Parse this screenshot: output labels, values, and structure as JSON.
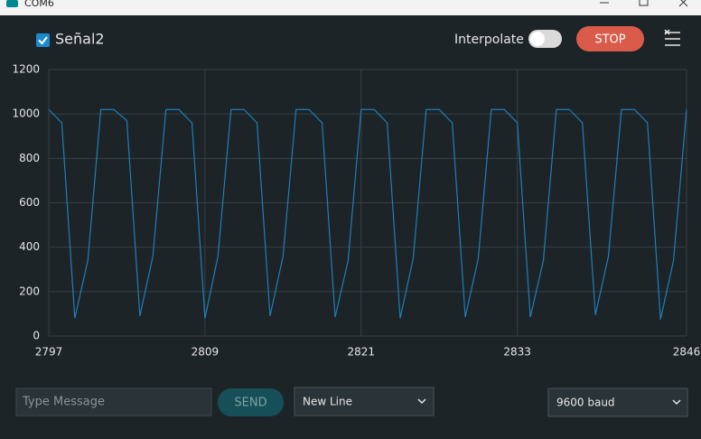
{
  "window": {
    "title": "COM6"
  },
  "toolbar": {
    "interpolate_label": "Interpolate",
    "stop_button": "STOP"
  },
  "footer": {
    "message_placeholder": "Type Message",
    "send_button": "SEND",
    "line_ending": "New Line",
    "baud_rate": "9600 baud"
  },
  "chart_data": {
    "type": "line",
    "x": [
      2797,
      2798,
      2799,
      2800,
      2801,
      2802,
      2803,
      2804,
      2805,
      2806,
      2807,
      2808,
      2809,
      2810,
      2811,
      2812,
      2813,
      2814,
      2815,
      2816,
      2817,
      2818,
      2819,
      2820,
      2821,
      2822,
      2823,
      2824,
      2825,
      2826,
      2827,
      2828,
      2829,
      2830,
      2831,
      2832,
      2833,
      2834,
      2835,
      2836,
      2837,
      2838,
      2839,
      2840,
      2841,
      2842,
      2843,
      2844,
      2845,
      2846
    ],
    "series": [
      {
        "name": "Señal2",
        "color": "#1f7fb8",
        "values": [
          1020,
          960,
          80,
          340,
          1020,
          1020,
          970,
          90,
          360,
          1020,
          1020,
          960,
          80,
          360,
          1020,
          1020,
          960,
          90,
          360,
          1020,
          1020,
          960,
          85,
          340,
          1020,
          1020,
          960,
          80,
          350,
          1020,
          1020,
          960,
          85,
          350,
          1020,
          1020,
          960,
          85,
          340,
          1020,
          1020,
          960,
          95,
          360,
          1020,
          1020,
          960,
          75,
          340,
          1020
        ]
      }
    ],
    "xlim": [
      2797,
      2846
    ],
    "xticks": [
      2797,
      2809,
      2821,
      2833,
      2846
    ],
    "ylim": [
      0,
      1200
    ],
    "yticks": [
      0,
      200,
      400,
      600,
      800,
      1000,
      1200
    ],
    "grid": true
  }
}
